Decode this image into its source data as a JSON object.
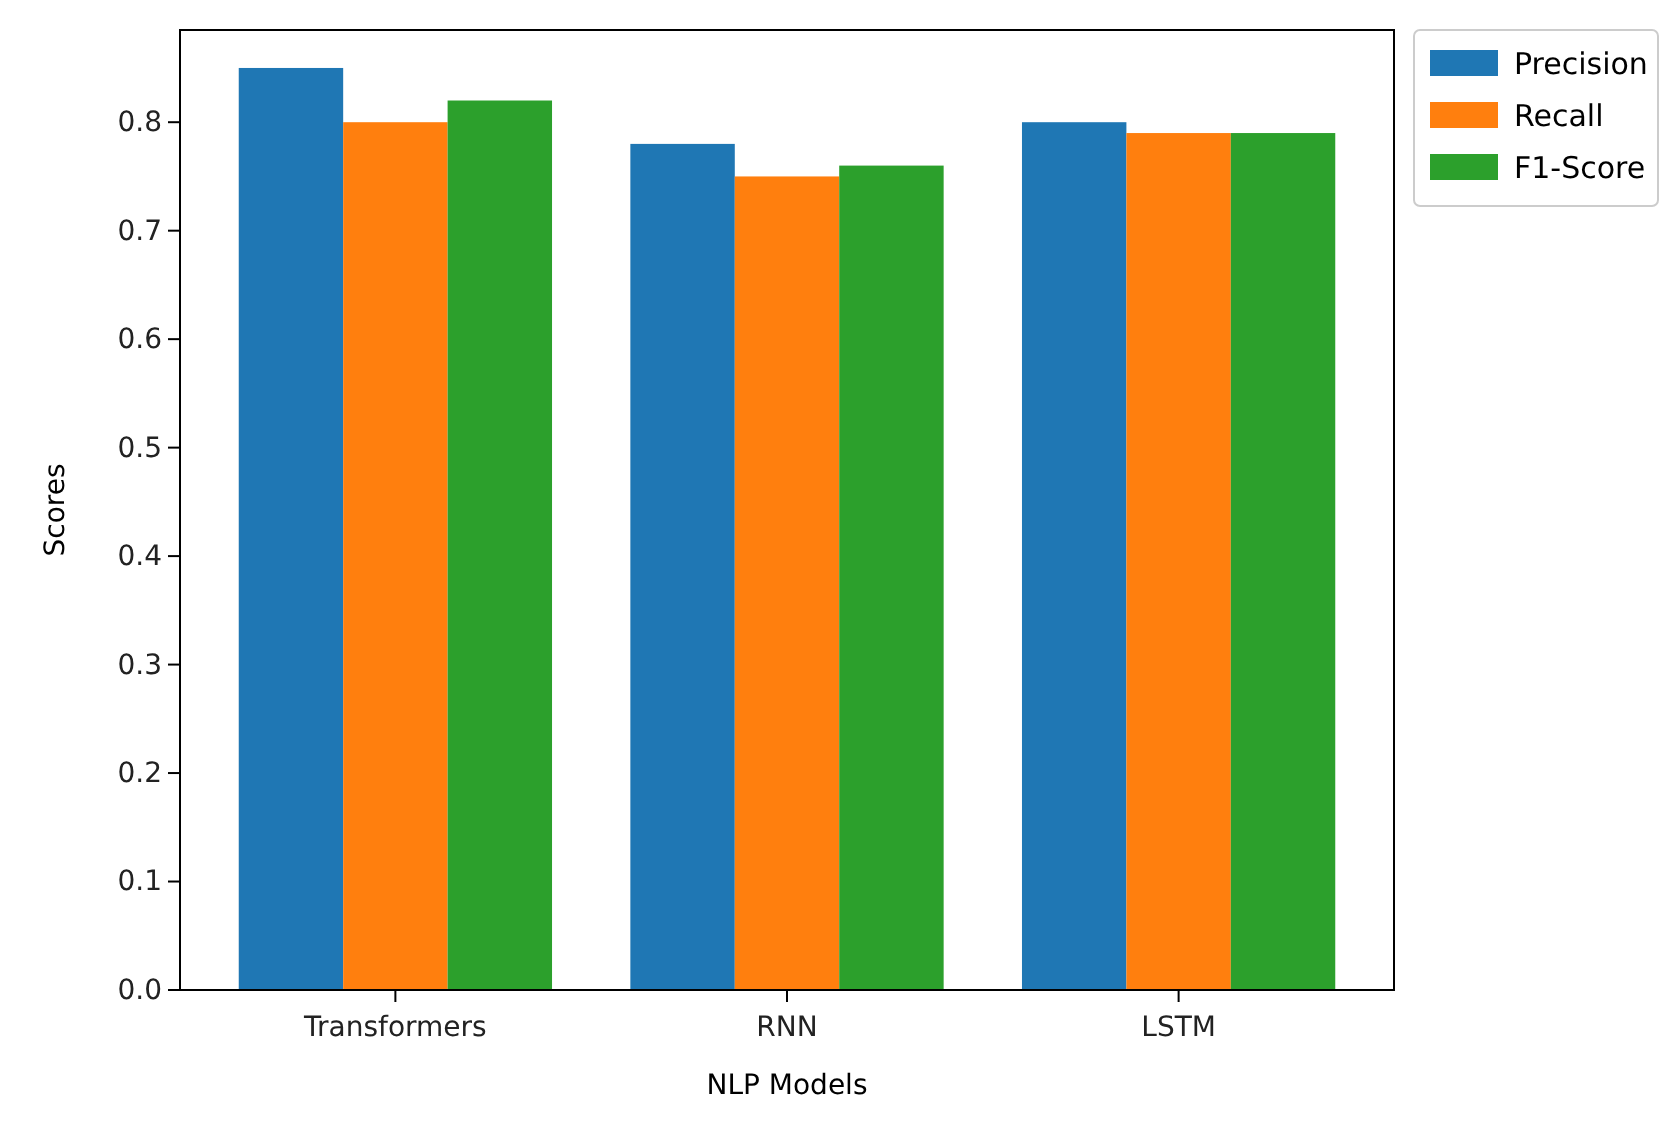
{
  "chart_data": {
    "type": "bar",
    "xlabel": "NLP Models",
    "ylabel": "Scores",
    "categories": [
      "Transformers",
      "RNN",
      "LSTM"
    ],
    "series": [
      {
        "name": "Precision",
        "color": "#1f77b4",
        "values": [
          0.85,
          0.78,
          0.8
        ]
      },
      {
        "name": "Recall",
        "color": "#ff7f0e",
        "values": [
          0.8,
          0.75,
          0.79
        ]
      },
      {
        "name": "F1-Score",
        "color": "#2ca02c",
        "values": [
          0.82,
          0.76,
          0.79
        ]
      }
    ],
    "ylim": [
      0,
      0.885
    ],
    "yticks": [
      {
        "value": 0,
        "label": "0.0"
      },
      0.1,
      0.2,
      0.3,
      0.4,
      0.5,
      0.6,
      0.7,
      0.8
    ],
    "legend": "top right"
  }
}
